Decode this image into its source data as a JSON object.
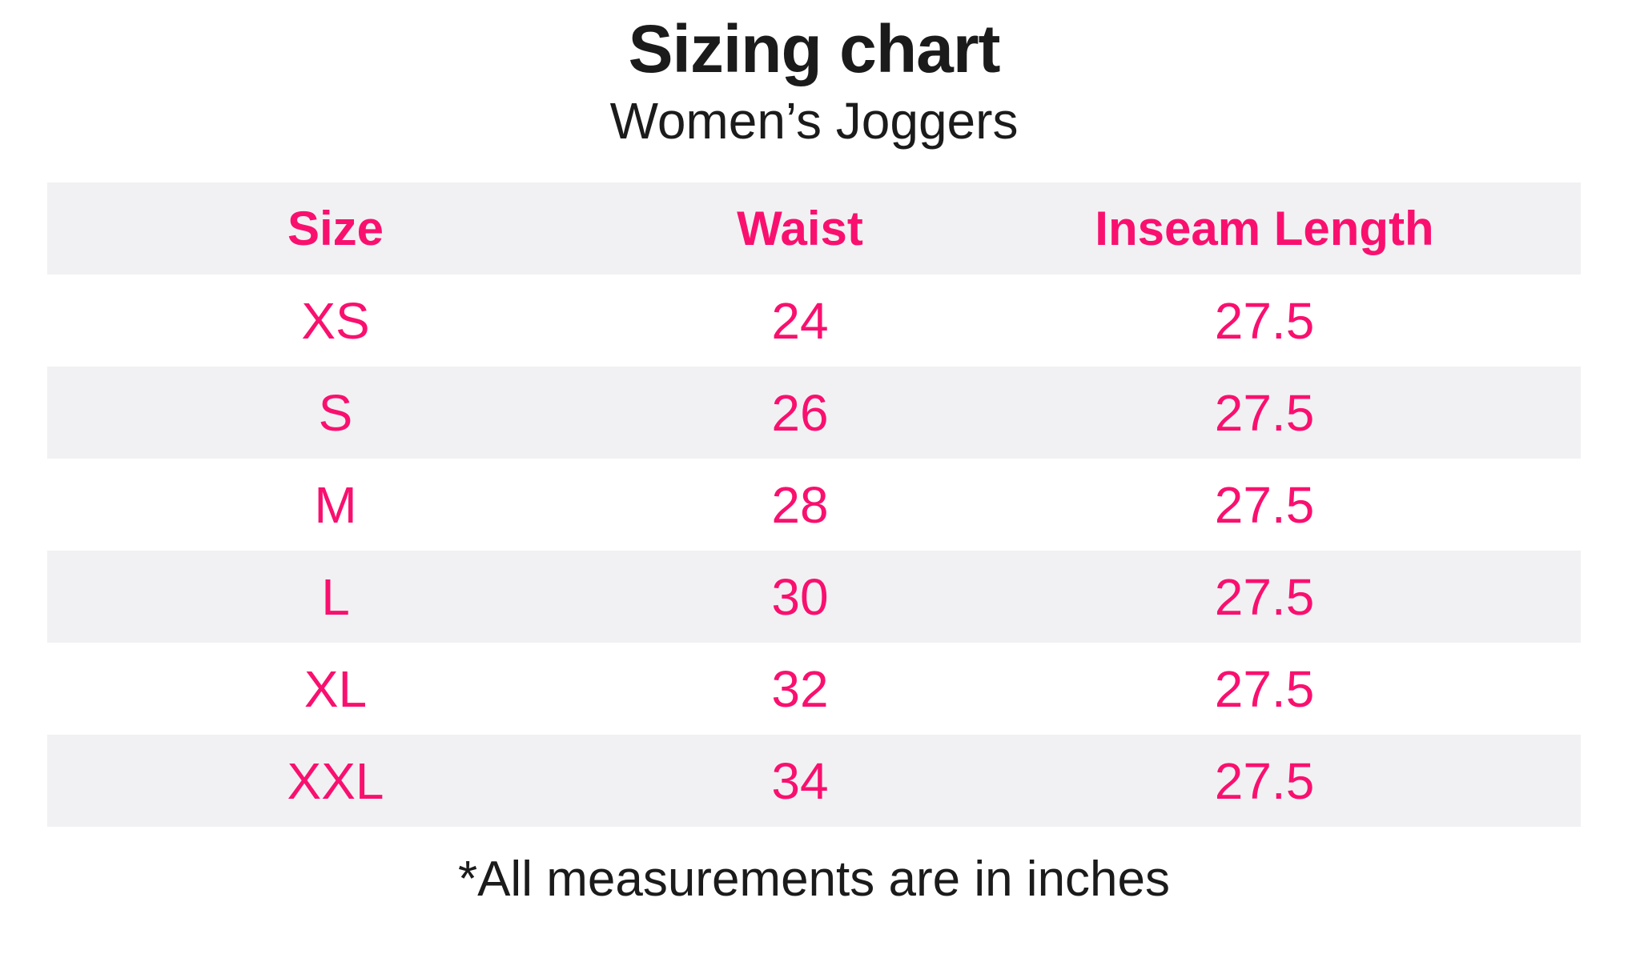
{
  "page": {
    "title": "Sizing chart",
    "subtitle": "Women’s Joggers",
    "footnote": "*All measurements are in inches"
  },
  "colors": {
    "accent_pink": "#F9106F",
    "row_alt_bg": "#F1F1F3",
    "text_black": "#1B1B1B",
    "page_bg": "#FFFFFF"
  },
  "chart_data": {
    "type": "table",
    "title": "Sizing chart",
    "subtitle": "Women’s Joggers",
    "columns": [
      "Size",
      "Waist",
      "Inseam Length"
    ],
    "rows": [
      [
        "XS",
        "24",
        "27.5"
      ],
      [
        "S",
        "26",
        "27.5"
      ],
      [
        "M",
        "28",
        "27.5"
      ],
      [
        "L",
        "30",
        "27.5"
      ],
      [
        "XL",
        "32",
        "27.5"
      ],
      [
        "XXL",
        "34",
        "27.5"
      ]
    ],
    "units_note": "*All measurements are in inches",
    "layout": {
      "header_row_bg": "#F1F1F3",
      "alternating_rows": true,
      "text_alignment": "center",
      "grid_lines": false
    }
  }
}
